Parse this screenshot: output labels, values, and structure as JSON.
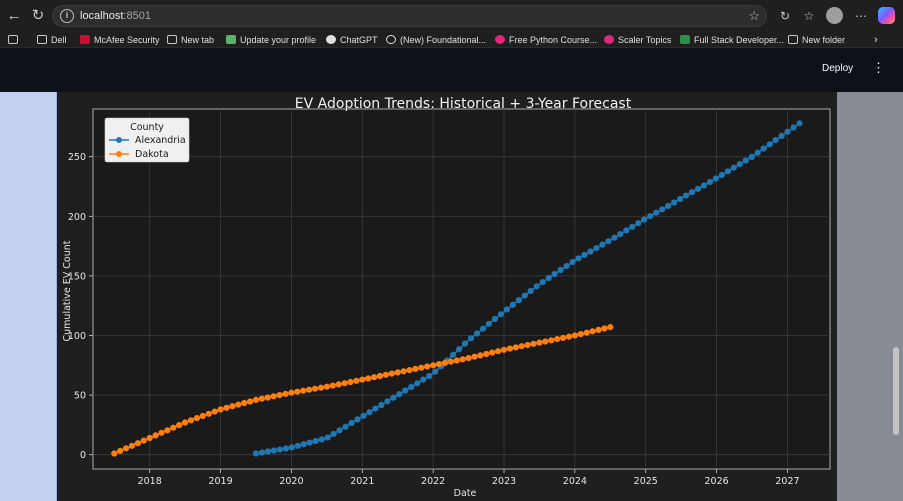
{
  "browser": {
    "url_host": "localhost",
    "url_port": ":8501",
    "bookmarks": [
      {
        "label": "Dell",
        "icon": "folder-icon",
        "color": "#d0d0d0"
      },
      {
        "label": "McAfee Security",
        "icon": "mcafee-icon",
        "color": "#c8102e"
      },
      {
        "label": "New tab",
        "icon": "newtab-icon",
        "color": "#d0d0d0"
      },
      {
        "label": "Update your profile",
        "icon": "profile-icon",
        "color": "#5bb36a"
      },
      {
        "label": "ChatGPT",
        "icon": "chatgpt-icon",
        "color": "#e0e0e0"
      },
      {
        "label": "(New) Foundational...",
        "icon": "anthropic-icon",
        "color": "#e0e0e0"
      },
      {
        "label": "Free Python Course...",
        "icon": "scaler-icon",
        "color": "#e0287a"
      },
      {
        "label": "Scaler Topics",
        "icon": "scaler-icon",
        "color": "#e0287a"
      },
      {
        "label": "Full Stack Developer...",
        "icon": "gfg-icon",
        "color": "#2f8d46"
      },
      {
        "label": "New folder",
        "icon": "folder-icon",
        "color": "#d0d0d0"
      }
    ]
  },
  "app": {
    "deploy_label": "Deploy"
  },
  "chart_data": {
    "type": "line",
    "title": "EV Adoption Trends: Historical + 3-Year Forecast",
    "xlabel": "Date",
    "ylabel": "Cumulative EV Count",
    "x_ticks": [
      "2018",
      "2019",
      "2020",
      "2021",
      "2022",
      "2023",
      "2024",
      "2025",
      "2026",
      "2027"
    ],
    "y_ticks": [
      0,
      50,
      100,
      150,
      200,
      250
    ],
    "xlim": [
      2017.2,
      2027.6
    ],
    "ylim": [
      -12,
      290
    ],
    "grid": true,
    "legend": {
      "title": "County",
      "placement": "top-left"
    },
    "marker": "circle",
    "series": [
      {
        "name": "Alexandria",
        "color": "#1f77b4",
        "anchors": [
          [
            2019.5,
            1
          ],
          [
            2020.0,
            6
          ],
          [
            2020.5,
            14
          ],
          [
            2021.0,
            32
          ],
          [
            2021.5,
            50
          ],
          [
            2022.0,
            68
          ],
          [
            2022.5,
            96
          ],
          [
            2023.0,
            120
          ],
          [
            2023.5,
            143
          ],
          [
            2024.0,
            163
          ],
          [
            2024.5,
            180
          ],
          [
            2025.0,
            198
          ],
          [
            2025.5,
            215
          ],
          [
            2026.0,
            232
          ],
          [
            2026.5,
            250
          ],
          [
            2027.17,
            278
          ]
        ],
        "points": 92
      },
      {
        "name": "Dakota",
        "color": "#ff7f0e",
        "anchors": [
          [
            2017.5,
            1
          ],
          [
            2018.0,
            14
          ],
          [
            2018.5,
            27
          ],
          [
            2019.0,
            38
          ],
          [
            2019.5,
            46
          ],
          [
            2020.0,
            52
          ],
          [
            2020.5,
            57
          ],
          [
            2021.0,
            63
          ],
          [
            2021.5,
            69
          ],
          [
            2022.0,
            75
          ],
          [
            2022.5,
            81
          ],
          [
            2023.0,
            88
          ],
          [
            2023.5,
            94
          ],
          [
            2024.0,
            100
          ],
          [
            2024.5,
            107
          ]
        ],
        "points": 85
      }
    ]
  }
}
